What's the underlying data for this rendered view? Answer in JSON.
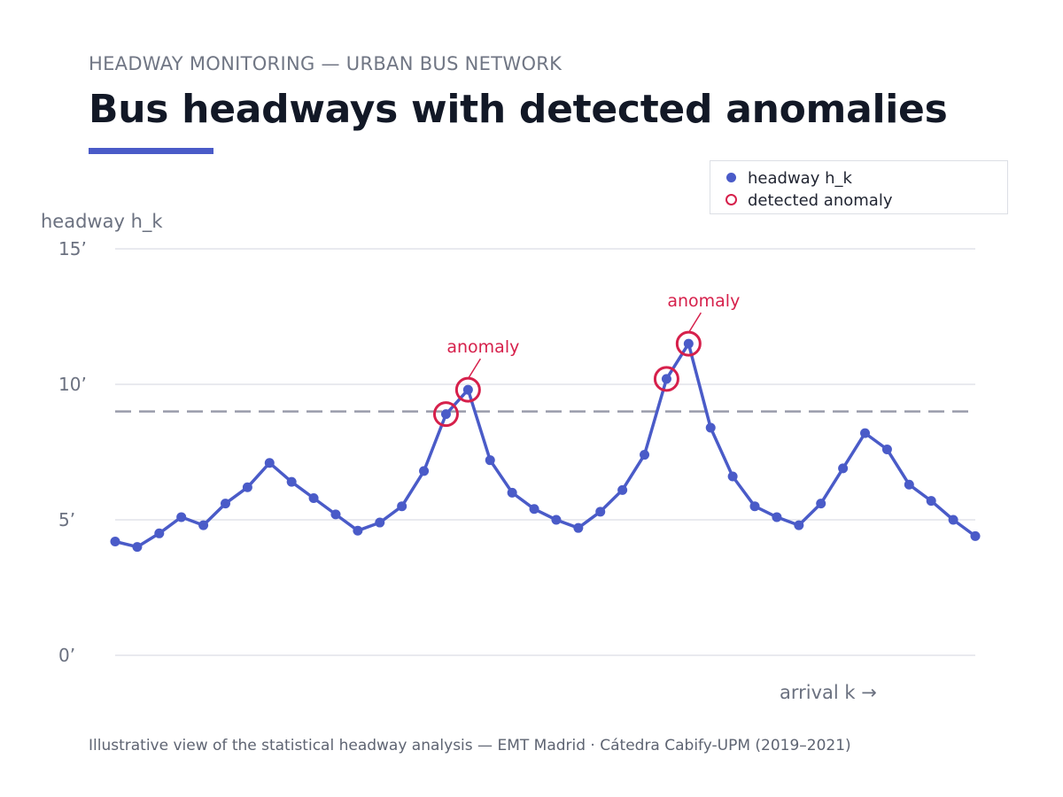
{
  "header": {
    "eyebrow": "HEADWAY MONITORING — URBAN BUS NETWORK",
    "title": "Bus headways with detected anomalies"
  },
  "legend": {
    "items": [
      {
        "label": "headway h_k",
        "marker": "dot"
      },
      {
        "label": "detected anomaly",
        "marker": "ring"
      }
    ]
  },
  "caption": "Illustrative view of the statistical headway analysis — EMT Madrid · Cátedra Cabify-UPM (2019–2021)",
  "colors": {
    "series": "#4a5bc8",
    "anomaly": "#d6204b",
    "threshold": "#9a9cab",
    "grid": "#e2e4ea"
  },
  "chart_data": {
    "type": "line",
    "title": "Bus headways with detected anomalies",
    "xlabel": "arrival k →",
    "ylabel": "headway h_k",
    "ylim": [
      0,
      15
    ],
    "yticks": [
      0,
      5,
      10,
      15
    ],
    "ytick_labels": [
      "0’",
      "5’",
      "10’",
      "15’"
    ],
    "grid": true,
    "legend_position": "top-right",
    "series": [
      {
        "name": "headway h_k",
        "x": [
          0,
          1,
          2,
          3,
          4,
          5,
          6,
          7,
          8,
          9,
          10,
          11,
          12,
          13,
          14,
          15,
          16,
          17,
          18,
          19,
          20,
          21,
          22,
          23,
          24,
          25,
          26,
          27,
          28,
          29,
          30,
          31,
          32,
          33,
          34,
          35,
          36,
          37,
          38,
          39
        ],
        "values": [
          4.2,
          4.0,
          4.5,
          5.1,
          4.8,
          5.6,
          6.2,
          7.1,
          6.4,
          5.8,
          5.2,
          4.6,
          4.9,
          5.5,
          6.8,
          8.9,
          9.8,
          7.2,
          6.0,
          5.4,
          5.0,
          4.7,
          5.3,
          6.1,
          7.4,
          10.2,
          11.5,
          8.4,
          6.6,
          5.5,
          5.1,
          4.8,
          5.6,
          6.9,
          8.2,
          7.6,
          6.3,
          5.7,
          5.0,
          4.4
        ]
      }
    ],
    "threshold": 9.0,
    "anomalies": [
      15,
      16,
      25,
      26
    ],
    "annotations": [
      {
        "text": "anomaly",
        "index": 16
      },
      {
        "text": "anomaly",
        "index": 26
      }
    ]
  }
}
